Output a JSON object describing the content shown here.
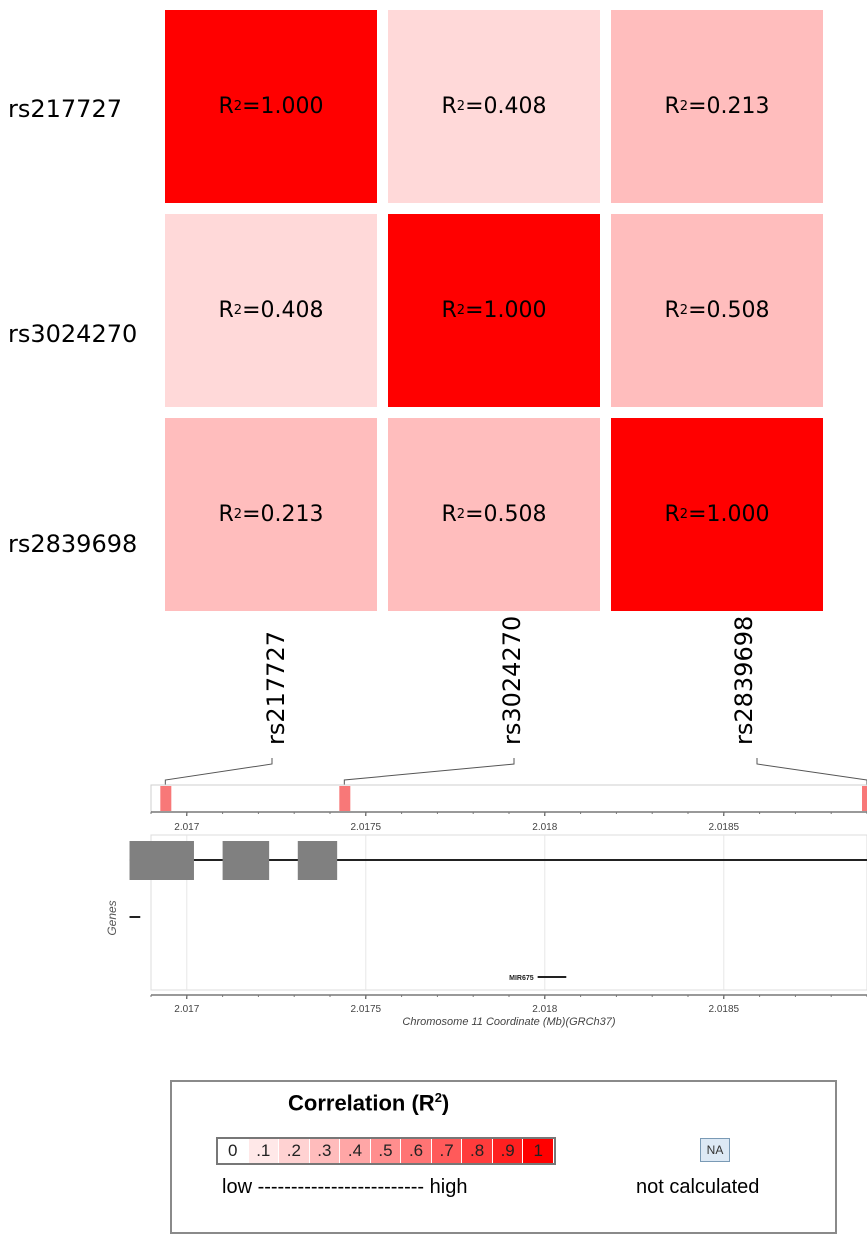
{
  "matrix": {
    "rows": [
      "rs217727",
      "rs3024270",
      "rs2839698"
    ],
    "columns": [
      "rs217727",
      "rs3024270",
      "rs2839698"
    ],
    "r2_prefix": "R",
    "r2_sup": "2",
    "cells": [
      [
        {
          "value": 1.0,
          "label": "=1.000",
          "color": "#ff0000"
        },
        {
          "value": 0.408,
          "label": "=0.408",
          "color": "#ffd9d9"
        },
        {
          "value": 0.213,
          "label": "=0.213",
          "color": "#ffbdbd"
        }
      ],
      [
        {
          "value": 0.408,
          "label": "=0.408",
          "color": "#ffd9d9"
        },
        {
          "value": 1.0,
          "label": "=1.000",
          "color": "#ff0000"
        },
        {
          "value": 0.508,
          "label": "=0.508",
          "color": "#ffbdbd"
        }
      ],
      [
        {
          "value": 0.213,
          "label": "=0.213",
          "color": "#ffbdbd"
        },
        {
          "value": 0.508,
          "label": "=0.508",
          "color": "#ffbdbd"
        },
        {
          "value": 1.0,
          "label": "=1.000",
          "color": "#ff0000"
        }
      ]
    ]
  },
  "chart_data": {
    "type": "heatmap",
    "x": [
      "rs217727",
      "rs3024270",
      "rs2839698"
    ],
    "y": [
      "rs217727",
      "rs3024270",
      "rs2839698"
    ],
    "values": [
      [
        1.0,
        0.408,
        0.213
      ],
      [
        0.408,
        1.0,
        0.508
      ],
      [
        0.213,
        0.508,
        1.0
      ]
    ],
    "metric": "R2"
  },
  "track": {
    "axis_min": 2.0169,
    "axis_max": 2.0189,
    "ticks": [
      {
        "value": 2.017,
        "label": "2.017"
      },
      {
        "value": 2.0175,
        "label": "2.0175"
      },
      {
        "value": 2.018,
        "label": "2.018"
      },
      {
        "value": 2.0185,
        "label": "2.0185"
      }
    ],
    "snp_positions": [
      2.01694,
      2.01744,
      2.0189
    ],
    "snp_color": "#f87878",
    "genes_label": "Genes",
    "exons": [
      [
        2.01684,
        2.01702
      ],
      [
        2.0171,
        2.01723
      ],
      [
        2.01731,
        2.01742
      ]
    ],
    "gene_line_end": 2.0189,
    "small_gene": [
      2.01684,
      2.01687
    ],
    "mir_label": "MIR675",
    "mir_range": [
      2.01798,
      2.01806
    ],
    "xaxis_label": "Chromosome 11 Coordinate (Mb)(GRCh37)"
  },
  "legend": {
    "title_text": "Correlation  (R",
    "title_sup": "2",
    "title_close": ")",
    "scale": [
      {
        "label": "0",
        "color": "#ffffff"
      },
      {
        "label": ".1",
        "color": "#ffe8e8"
      },
      {
        "label": ".2",
        "color": "#ffd2d2"
      },
      {
        "label": ".3",
        "color": "#ffbcbc"
      },
      {
        "label": ".4",
        "color": "#ffa6a6"
      },
      {
        "label": ".5",
        "color": "#ff8e8e"
      },
      {
        "label": ".6",
        "color": "#ff7474"
      },
      {
        "label": ".7",
        "color": "#ff5a5a"
      },
      {
        "label": ".8",
        "color": "#ff3c3c"
      },
      {
        "label": ".9",
        "color": "#ff2020"
      },
      {
        "label": "1",
        "color": "#ff0000"
      }
    ],
    "low_high": "low ------------------------- high",
    "na_label": "NA",
    "na_color": "#dde9f5",
    "not_calculated": "not calculated"
  }
}
